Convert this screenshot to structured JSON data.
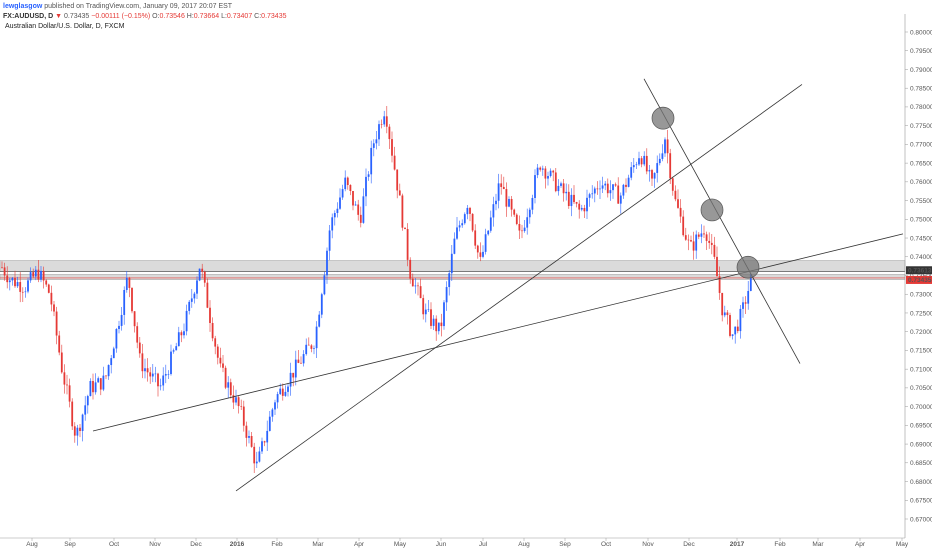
{
  "header": {
    "author": "lewglasgow",
    "published": "published on TradingView.com, January 09, 2017 20:07 EST",
    "symbol": "FX:AUDUSD, D",
    "last": "0.73435",
    "change": "−0.00111 (−0.15%)",
    "o_label": "O:",
    "o": "0.73546",
    "h_label": "H:",
    "h": "0.73664",
    "l_label": "L:",
    "l": "0.73407",
    "c_label": "C:",
    "c": "0.73435"
  },
  "colors": {
    "up": "#2962ff",
    "down": "#e53935",
    "zone": "#bdbdbd",
    "circle": "#757575",
    "trendline": "#333333"
  },
  "chart_data": {
    "type": "candlestick",
    "title": "Australian Dollar/U.S. Dollar, D, FXCM",
    "ylim": [
      0.868,
      0.8005
    ],
    "y_range": [
      0.868,
      0.8005
    ],
    "y_ticks": [
      "0.80000",
      "0.79500",
      "0.79000",
      "0.78500",
      "0.78000",
      "0.77500",
      "0.77000",
      "0.76500",
      "0.76000",
      "0.75500",
      "0.75000",
      "0.74500",
      "0.74000",
      "0.73500",
      "0.73000",
      "0.72500",
      "0.72000",
      "0.71500",
      "0.71000",
      "0.70500",
      "0.70000",
      "0.69500",
      "0.69000",
      "0.68500",
      "0.68000",
      "0.67500",
      "0.67000"
    ],
    "x_ticks": [
      "Aug",
      "Sep",
      "Oct",
      "Nov",
      "Dec",
      "2016",
      "Feb",
      "Mar",
      "Apr",
      "May",
      "Jun",
      "Jul",
      "Aug",
      "Sep",
      "Oct",
      "Nov",
      "Dec",
      "2017",
      "Feb",
      "Mar",
      "Apr",
      "May"
    ],
    "price_labels": [
      {
        "value": "0.73613",
        "color": "#333333"
      },
      {
        "value": "0.73435",
        "color": "#e53935"
      }
    ],
    "series_path": [
      {
        "t": 0,
        "p": 0.738
      },
      {
        "t": 10,
        "p": 0.734
      },
      {
        "t": 25,
        "p": 0.732
      },
      {
        "t": 38,
        "p": 0.736
      },
      {
        "t": 50,
        "p": 0.73
      },
      {
        "t": 62,
        "p": 0.71
      },
      {
        "t": 76,
        "p": 0.692
      },
      {
        "t": 90,
        "p": 0.705
      },
      {
        "t": 105,
        "p": 0.707
      },
      {
        "t": 118,
        "p": 0.722
      },
      {
        "t": 128,
        "p": 0.735
      },
      {
        "t": 140,
        "p": 0.712
      },
      {
        "t": 160,
        "p": 0.705
      },
      {
        "t": 185,
        "p": 0.722
      },
      {
        "t": 200,
        "p": 0.738
      },
      {
        "t": 220,
        "p": 0.71
      },
      {
        "t": 240,
        "p": 0.699
      },
      {
        "t": 257,
        "p": 0.684
      },
      {
        "t": 275,
        "p": 0.702
      },
      {
        "t": 295,
        "p": 0.71
      },
      {
        "t": 315,
        "p": 0.718
      },
      {
        "t": 330,
        "p": 0.748
      },
      {
        "t": 345,
        "p": 0.76
      },
      {
        "t": 360,
        "p": 0.75
      },
      {
        "t": 373,
        "p": 0.77
      },
      {
        "t": 385,
        "p": 0.78
      },
      {
        "t": 398,
        "p": 0.758
      },
      {
        "t": 410,
        "p": 0.736
      },
      {
        "t": 425,
        "p": 0.725
      },
      {
        "t": 440,
        "p": 0.72
      },
      {
        "t": 455,
        "p": 0.745
      },
      {
        "t": 468,
        "p": 0.755
      },
      {
        "t": 480,
        "p": 0.738
      },
      {
        "t": 500,
        "p": 0.76
      },
      {
        "t": 520,
        "p": 0.745
      },
      {
        "t": 540,
        "p": 0.765
      },
      {
        "t": 560,
        "p": 0.758
      },
      {
        "t": 580,
        "p": 0.752
      },
      {
        "t": 600,
        "p": 0.76
      },
      {
        "t": 620,
        "p": 0.756
      },
      {
        "t": 640,
        "p": 0.768
      },
      {
        "t": 652,
        "p": 0.759
      },
      {
        "t": 665,
        "p": 0.772
      },
      {
        "t": 675,
        "p": 0.755
      },
      {
        "t": 690,
        "p": 0.742
      },
      {
        "t": 705,
        "p": 0.748
      },
      {
        "t": 715,
        "p": 0.738
      },
      {
        "t": 723,
        "p": 0.725
      },
      {
        "t": 733,
        "p": 0.719
      },
      {
        "t": 742,
        "p": 0.725
      },
      {
        "t": 752,
        "p": 0.735
      }
    ],
    "zones": [
      {
        "from": 0.739,
        "to": 0.736
      },
      {
        "from": 0.7353,
        "to": 0.7339
      }
    ],
    "trendlines": [
      {
        "from": [
          236,
          0.6775
        ],
        "to": [
          802,
          0.786
        ]
      },
      {
        "from": [
          93,
          0.6935
        ],
        "to": [
          903,
          0.7461
        ]
      },
      {
        "from": [
          644,
          0.7875
        ],
        "to": [
          800,
          0.7115
        ]
      }
    ],
    "circles": [
      {
        "t": 663,
        "p": 0.777
      },
      {
        "t": 712,
        "p": 0.7525
      },
      {
        "t": 748,
        "p": 0.7372
      }
    ]
  }
}
